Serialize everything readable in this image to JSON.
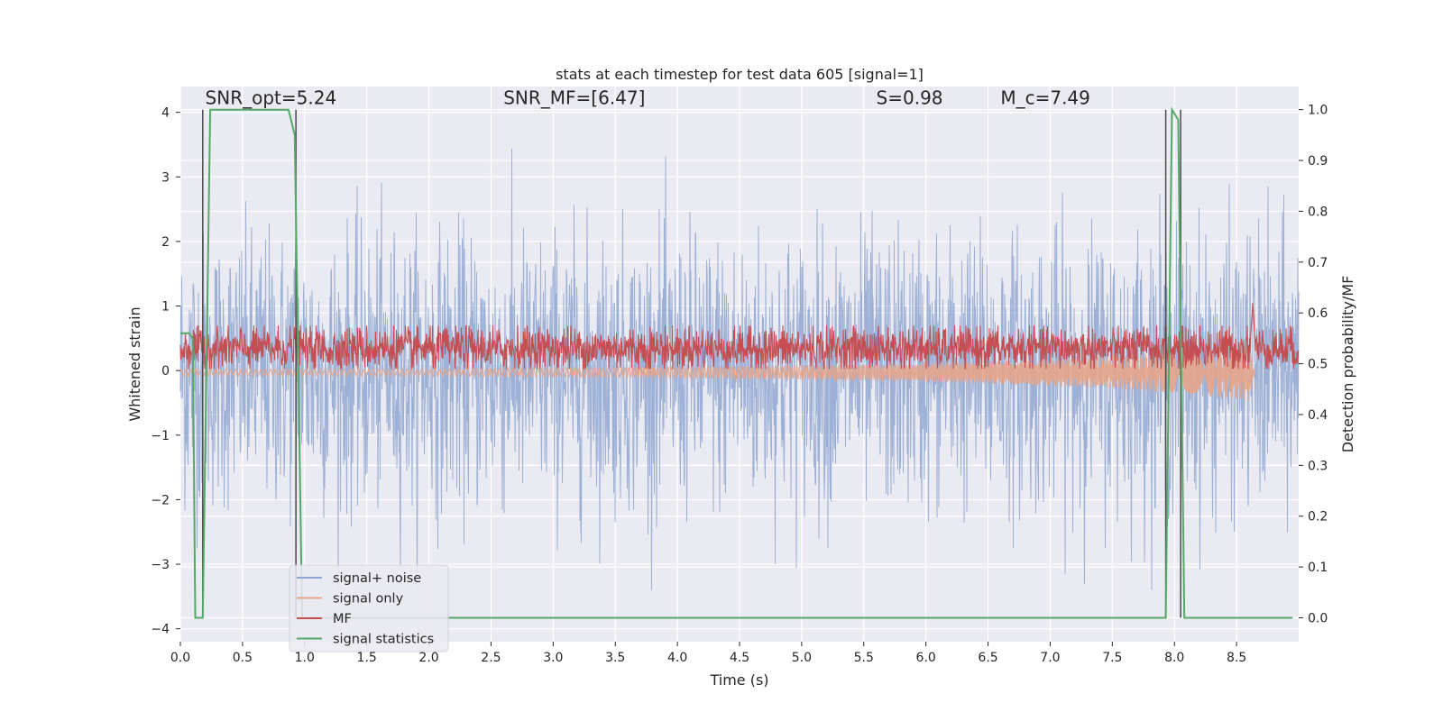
{
  "chart_data": {
    "type": "line",
    "title": "stats at each timestep for test data 605 [signal=1]",
    "xlabel": "Time (s)",
    "ylabel_left": "Whitened strain",
    "ylabel_right": "Detection probability/MF",
    "xlim": [
      0.0,
      9.0
    ],
    "ylim_left": [
      -4.2,
      4.4
    ],
    "ylim_right": [
      -0.047,
      1.0455
    ],
    "x_ticks": [
      "0.0",
      "0.5",
      "1.0",
      "1.5",
      "2.0",
      "2.5",
      "3.0",
      "3.5",
      "4.0",
      "4.5",
      "5.0",
      "5.5",
      "6.0",
      "6.5",
      "7.0",
      "7.5",
      "8.0",
      "8.5"
    ],
    "x_tick_values": [
      0.0,
      0.5,
      1.0,
      1.5,
      2.0,
      2.5,
      3.0,
      3.5,
      4.0,
      4.5,
      5.0,
      5.5,
      6.0,
      6.5,
      7.0,
      7.5,
      8.0,
      8.5
    ],
    "y_ticks_left": [
      "−4",
      "−3",
      "−2",
      "−1",
      "0",
      "1",
      "2",
      "3",
      "4"
    ],
    "y_tick_values_left": [
      -4,
      -3,
      -2,
      -1,
      0,
      1,
      2,
      3,
      4
    ],
    "y_ticks_right": [
      "0.0",
      "0.1",
      "0.2",
      "0.3",
      "0.4",
      "0.5",
      "0.6",
      "0.7",
      "0.8",
      "0.9",
      "1.0"
    ],
    "y_tick_values_right": [
      0.0,
      0.1,
      0.2,
      0.3,
      0.4,
      0.5,
      0.6,
      0.7,
      0.8,
      0.9,
      1.0
    ],
    "grid": true,
    "legend_position": "lower-left",
    "annotations": [
      {
        "text": "SNR_opt=5.24",
        "x": 0.2,
        "y": 4.13
      },
      {
        "text": "SNR_MF=[6.47]",
        "x": 2.6,
        "y": 4.13
      },
      {
        "text": "S=0.98",
        "x": 5.6,
        "y": 4.13
      },
      {
        "text": "M_c=7.49",
        "x": 6.6,
        "y": 4.13
      }
    ],
    "vertical_lines": [
      0.18,
      0.93,
      7.93,
      8.05
    ],
    "series": [
      {
        "name": "signal+ noise",
        "color": "#8fa6d0",
        "axis": "left",
        "description": "whitened noisy strain, approx. range -3.4 to 4.0, centered at 0"
      },
      {
        "name": "signal only",
        "color": "#e5a48a",
        "axis": "left",
        "description": "chirp signal growing from ~0.05 to ~0.45 amplitude, ending near t=8.65",
        "envelope": [
          [
            0.0,
            0.05
          ],
          [
            2.0,
            0.05
          ],
          [
            4.0,
            0.08
          ],
          [
            5.5,
            0.12
          ],
          [
            6.5,
            0.17
          ],
          [
            7.5,
            0.25
          ],
          [
            8.2,
            0.35
          ],
          [
            8.6,
            0.45
          ],
          [
            8.65,
            0.0
          ]
        ]
      },
      {
        "name": "MF",
        "color": "#c44e52",
        "axis": "right",
        "description": "matched-filter output, approx. 0.50-0.57, spike to 0.62 at t=8.63"
      },
      {
        "name": "signal statistics",
        "color": "#55a868",
        "axis": "right",
        "x": [
          0.0,
          0.07,
          0.1,
          0.12,
          0.18,
          0.24,
          0.87,
          0.92,
          0.98,
          7.93,
          7.98,
          8.03,
          8.08,
          8.13,
          8.95
        ],
        "y": [
          0.56,
          0.56,
          0.55,
          0.0,
          0.0,
          1.0,
          1.0,
          0.95,
          0.0,
          0.0,
          1.0,
          0.98,
          0.0,
          0.0,
          0.0
        ]
      }
    ]
  },
  "colors": {
    "plot_background": "#eaeaf2",
    "grid": "#ffffff",
    "text": "#262626"
  }
}
